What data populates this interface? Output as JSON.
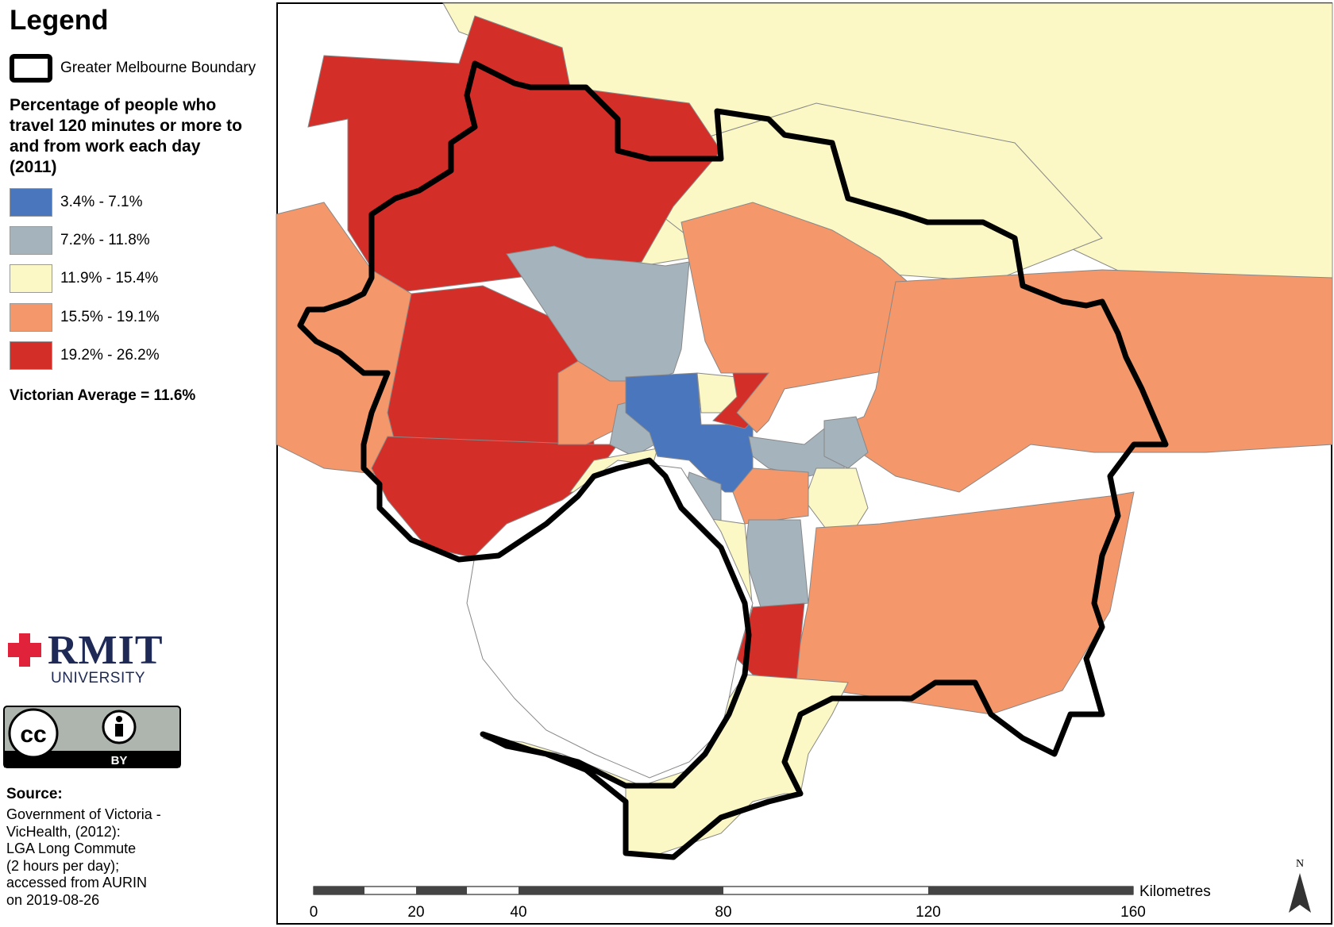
{
  "legend": {
    "title": "Legend",
    "boundary_label": "Greater Melbourne Boundary",
    "heading_lines": [
      "Percentage of people who",
      "travel 120 minutes or more to",
      "and from work each day",
      "(2011)"
    ],
    "classes": [
      {
        "label": "3.4% - 7.1%",
        "color": "#4a76bd"
      },
      {
        "label": "7.2% - 11.8%",
        "color": "#a5b3bd"
      },
      {
        "label": "11.9% - 15.4%",
        "color": "#fbf8c5"
      },
      {
        "label": "15.5% - 19.1%",
        "color": "#f4976a"
      },
      {
        "label": "19.2% - 26.2%",
        "color": "#d42e29"
      }
    ],
    "average": "Victorian Average = 11.6%"
  },
  "logo": {
    "word": "RMIT",
    "sub": "UNIVERSITY",
    "cc_label": "BY"
  },
  "source": {
    "heading": "Source:",
    "lines": [
      "Government of Victoria -",
      "VicHealth, (2012):",
      "LGA Long Commute",
      "(2 hours per day);",
      "accessed from AURIN",
      "on 2019-08-26"
    ]
  },
  "scale": {
    "unit": "Kilometres",
    "ticks": [
      "0",
      "20",
      "40",
      "80",
      "120",
      "160"
    ]
  },
  "north_label": "N"
}
